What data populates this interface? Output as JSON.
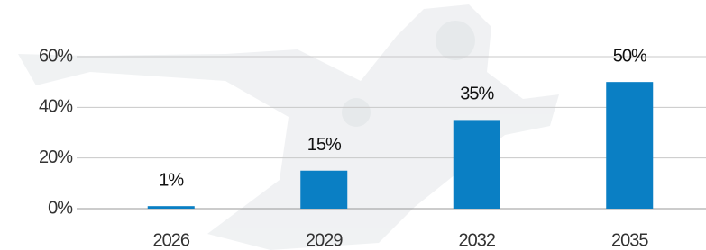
{
  "chart_data": {
    "type": "bar",
    "categories": [
      "2026",
      "2029",
      "2032",
      "2035"
    ],
    "values": [
      1,
      15,
      35,
      50
    ],
    "value_labels": [
      "1%",
      "15%",
      "35%",
      "50%"
    ],
    "color": "#0a7fc4",
    "ylim": [
      0,
      60
    ],
    "yticks": [
      {
        "value": 0,
        "label": "0%"
      },
      {
        "value": 20,
        "label": "20%"
      },
      {
        "value": 40,
        "label": "40%"
      },
      {
        "value": 60,
        "label": "60%"
      }
    ],
    "grid": true
  }
}
